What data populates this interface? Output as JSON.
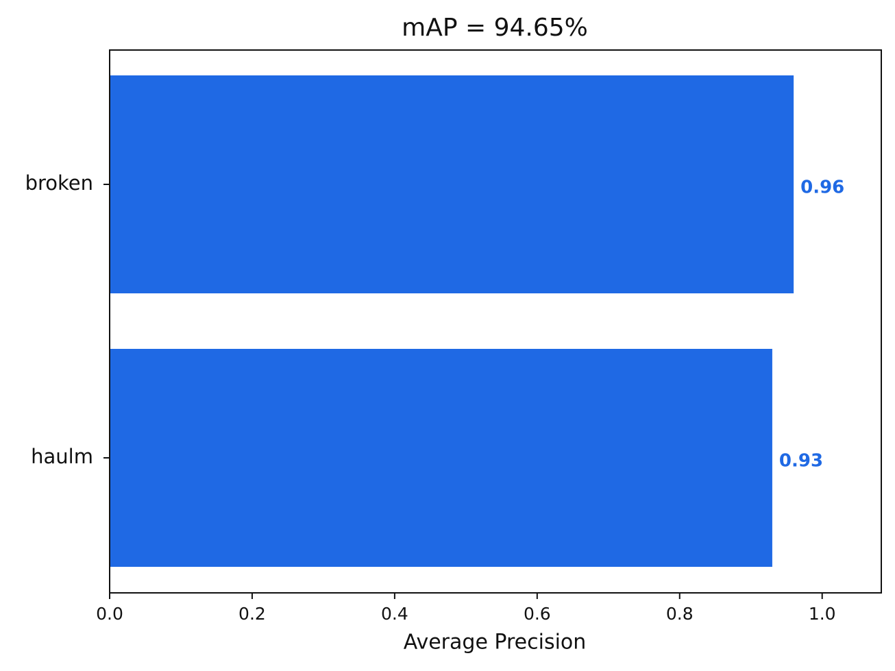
{
  "chart_data": {
    "type": "barh",
    "title": "mAP = 94.65%",
    "xlabel": "Average Precision",
    "categories": [
      "broken",
      "haulm"
    ],
    "values": [
      0.96,
      0.93
    ],
    "color": "#1f69e4",
    "xlim": [
      0,
      1.083
    ],
    "xticks": [
      {
        "value": 0,
        "label": "0.0"
      },
      0.2,
      0.4,
      0.6,
      0.8,
      {
        "value": 1,
        "label": "1.0"
      }
    ]
  }
}
